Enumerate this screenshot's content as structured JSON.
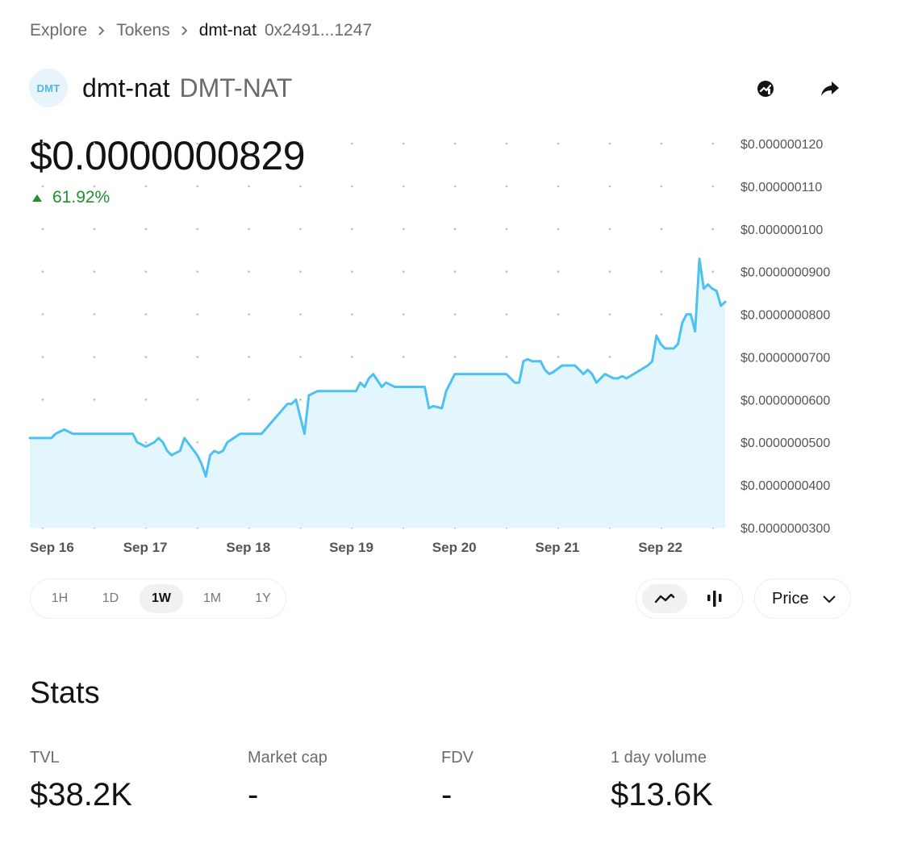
{
  "breadcrumb": {
    "items": [
      "Explore",
      "Tokens"
    ],
    "current": "dmt-nat",
    "address": "0x2491...1247"
  },
  "token": {
    "logo_text": "DMT",
    "name": "dmt-nat",
    "symbol": "DMT-NAT"
  },
  "header_icons": [
    "chart-explorer-icon",
    "share-icon"
  ],
  "price": {
    "value": "$0.0000000829",
    "change": "61.92%",
    "direction": "up"
  },
  "colors": {
    "accent": "#4cc1f2",
    "area_fill": "#e3f5fd",
    "positive": "#1f8f2f",
    "text": "#131313",
    "muted": "#6b6b6b"
  },
  "chart_data": {
    "type": "area",
    "y_ticks": [
      "$0.000000120",
      "$0.000000110",
      "$0.000000100",
      "$0.0000000900",
      "$0.0000000800",
      "$0.0000000700",
      "$0.0000000600",
      "$0.0000000500",
      "$0.0000000400",
      "$0.0000000300"
    ],
    "x_ticks": [
      "Sep 16",
      "Sep 17",
      "Sep 18",
      "Sep 19",
      "Sep 20",
      "Sep 21",
      "Sep 22"
    ],
    "ylim": [
      3e-08,
      1.2e-07
    ],
    "xlim": [
      "2024-09-16",
      "2024-09-22 18:00"
    ],
    "grid": "dotted",
    "x": [
      "2024-09-16 00:00",
      "2024-09-16 05:00",
      "2024-09-16 06:00",
      "2024-09-16 08:00",
      "2024-09-16 10:00",
      "2024-09-16 14:00",
      "2024-09-16 20:00",
      "2024-09-17 00:00",
      "2024-09-17 01:00",
      "2024-09-17 03:00",
      "2024-09-17 05:00",
      "2024-09-17 06:00",
      "2024-09-17 07:00",
      "2024-09-17 08:00",
      "2024-09-17 09:00",
      "2024-09-17 11:00",
      "2024-09-17 12:00",
      "2024-09-17 15:00",
      "2024-09-17 16:00",
      "2024-09-17 17:00",
      "2024-09-17 18:00",
      "2024-09-17 19:00",
      "2024-09-17 20:00",
      "2024-09-17 21:00",
      "2024-09-17 22:00",
      "2024-09-18 01:00",
      "2024-09-18 02:00",
      "2024-09-18 04:00",
      "2024-09-18 06:00",
      "2024-09-18 12:00",
      "2024-09-18 13:00",
      "2024-09-18 14:00",
      "2024-09-18 16:00",
      "2024-09-18 17:00",
      "2024-09-18 19:00",
      "2024-09-18 20:00",
      "2024-09-18 21:00",
      "2024-09-18 22:00",
      "2024-09-19 04:00",
      "2024-09-19 05:00",
      "2024-09-19 06:00",
      "2024-09-19 07:00",
      "2024-09-19 08:00",
      "2024-09-19 10:00",
      "2024-09-19 11:00",
      "2024-09-19 13:00",
      "2024-09-19 14:00",
      "2024-09-19 16:00",
      "2024-09-19 20:00",
      "2024-09-19 21:00",
      "2024-09-19 22:00",
      "2024-09-20 00:00",
      "2024-09-20 01:00",
      "2024-09-20 03:00",
      "2024-09-20 04:00",
      "2024-09-20 11:00",
      "2024-09-20 12:00",
      "2024-09-20 14:00",
      "2024-09-20 15:00",
      "2024-09-20 17:00",
      "2024-09-20 18:00",
      "2024-09-20 19:00",
      "2024-09-20 20:00",
      "2024-09-20 21:00",
      "2024-09-20 23:00",
      "2024-09-21 00:00",
      "2024-09-21 01:00",
      "2024-09-21 02:00",
      "2024-09-21 04:00",
      "2024-09-21 05:00",
      "2024-09-21 07:00",
      "2024-09-21 08:00",
      "2024-09-21 09:00",
      "2024-09-21 10:00",
      "2024-09-21 11:00",
      "2024-09-21 12:00",
      "2024-09-21 14:00",
      "2024-09-21 16:00",
      "2024-09-21 17:00",
      "2024-09-21 18:00",
      "2024-09-21 19:00",
      "2024-09-22 00:00",
      "2024-09-22 01:00",
      "2024-09-22 02:00",
      "2024-09-22 03:00",
      "2024-09-22 04:00",
      "2024-09-22 06:00",
      "2024-09-22 07:00",
      "2024-09-22 08:00",
      "2024-09-22 09:00",
      "2024-09-22 10:00",
      "2024-09-22 11:00",
      "2024-09-22 12:00",
      "2024-09-22 13:00",
      "2024-09-22 14:00",
      "2024-09-22 15:00",
      "2024-09-22 16:00",
      "2024-09-22 17:00",
      "2024-09-22 18:00"
    ],
    "series": [
      {
        "values": [
          5.1e-08,
          5.1e-08,
          5.2e-08,
          5.3e-08,
          5.2e-08,
          5.2e-08,
          5.2e-08,
          5.2e-08,
          5e-08,
          4.9e-08,
          5e-08,
          5.1e-08,
          5e-08,
          4.8e-08,
          4.7e-08,
          4.8e-08,
          5.1e-08,
          4.7e-08,
          4.5e-08,
          4.2e-08,
          4.7e-08,
          4.8e-08,
          4.75e-08,
          4.8e-08,
          5e-08,
          5.2e-08,
          5.2e-08,
          5.2e-08,
          5.2e-08,
          5.9e-08,
          5.9e-08,
          6e-08,
          5.2e-08,
          6.1e-08,
          6.2e-08,
          6.2e-08,
          6.2e-08,
          6.2e-08,
          6.2e-08,
          6.4e-08,
          6.3e-08,
          6.5e-08,
          6.6e-08,
          6.3e-08,
          6.4e-08,
          6.3e-08,
          6.3e-08,
          6.3e-08,
          6.3e-08,
          5.8e-08,
          5.85e-08,
          5.8e-08,
          6.2e-08,
          6.6e-08,
          6.6e-08,
          6.6e-08,
          6.6e-08,
          6.6e-08,
          6.6e-08,
          6.4e-08,
          6.4e-08,
          6.9e-08,
          6.95e-08,
          6.9e-08,
          6.9e-08,
          6.7e-08,
          6.6e-08,
          6.65e-08,
          6.8e-08,
          6.8e-08,
          6.8e-08,
          6.7e-08,
          6.6e-08,
          6.7e-08,
          6.6e-08,
          6.4e-08,
          6.6e-08,
          6.5e-08,
          6.5e-08,
          6.55e-08,
          6.5e-08,
          6.8e-08,
          6.9e-08,
          7.5e-08,
          7.3e-08,
          7.2e-08,
          7.2e-08,
          7.3e-08,
          7.8e-08,
          8e-08,
          8e-08,
          7.6e-08,
          9.3e-08,
          8.6e-08,
          8.7e-08,
          8.6e-08,
          8.55e-08,
          8.2e-08,
          8.29e-08
        ]
      }
    ]
  },
  "time_ranges": [
    "1H",
    "1D",
    "1W",
    "1M",
    "1Y"
  ],
  "active_time_range": "1W",
  "chart_types": [
    "line-chart-icon",
    "candlestick-chart-icon"
  ],
  "active_chart_type": "line-chart-icon",
  "price_select": {
    "label": "Price"
  },
  "stats": {
    "title": "Stats",
    "items": [
      {
        "label": "TVL",
        "value": "$38.2K"
      },
      {
        "label": "Market cap",
        "value": "-"
      },
      {
        "label": "FDV",
        "value": "-"
      },
      {
        "label": "1 day volume",
        "value": "$13.6K"
      }
    ]
  }
}
